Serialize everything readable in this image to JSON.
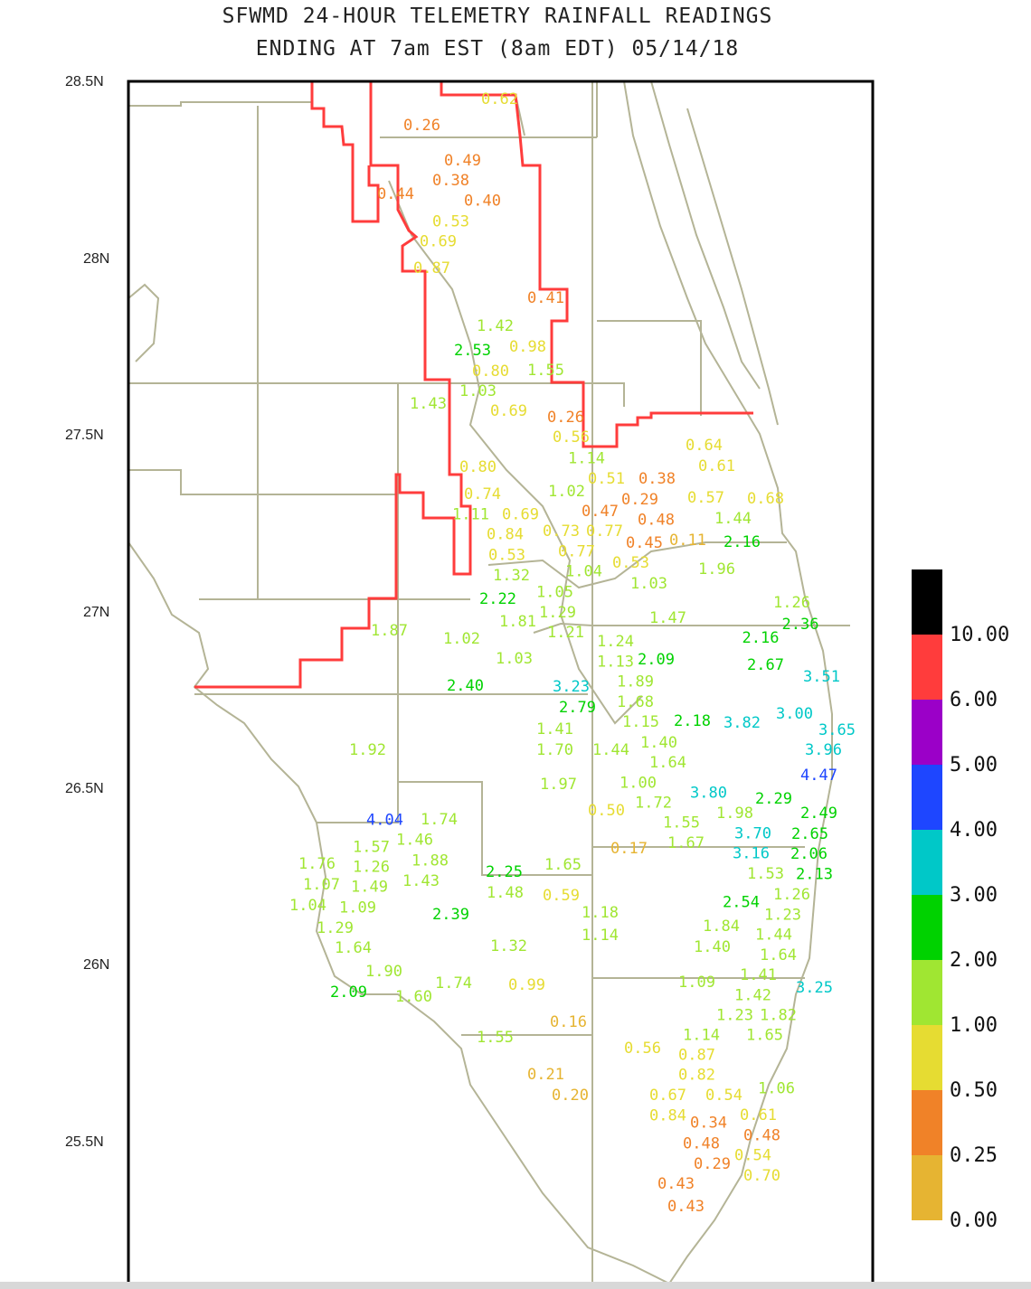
{
  "title_line1": "SFWMD 24-HOUR TELEMETRY RAINFALL READINGS",
  "title_line2": "ENDING AT 7am EST (8am EDT) 05/14/18",
  "lat_ticks": [
    "28.5N",
    "28N",
    "27.5N",
    "27N",
    "26.5N",
    "26N",
    "25.5N"
  ],
  "legend": {
    "labels": [
      "10.00",
      "6.00",
      "5.00",
      "4.00",
      "3.00",
      "2.00",
      "1.00",
      "0.50",
      "0.25",
      "0.00"
    ],
    "colors": [
      "#000000",
      "#ff3c3c",
      "#9b00c8",
      "#1e46ff",
      "#00c8c8",
      "#00d200",
      "#a0e632",
      "#e6dc32",
      "#f08228",
      "#e6b432"
    ]
  },
  "colors": {
    "district_boundary": "#ff3c3c",
    "county_lines": "#b4b496",
    "frame": "#000000"
  },
  "readings": [
    "0.62",
    "0.26",
    "0.49",
    "0.38",
    "0.44",
    "0.40",
    "0.53",
    "0.69",
    "0.87",
    "0.41",
    "1.42",
    "2.53",
    "0.98",
    "0.80",
    "1.55",
    "1.03",
    "1.43",
    "0.69",
    "0.26",
    "0.56",
    "0.64",
    "0.61",
    "0.80",
    "1.14",
    "0.51",
    "0.38",
    "0.74",
    "1.02",
    "0.29",
    "0.57",
    "0.68",
    "1.11",
    "0.69",
    "0.47",
    "0.48",
    "1.44",
    "0.84",
    "0.73",
    "0.77",
    "0.11",
    "2.16",
    "0.53",
    "0.45",
    "0.77",
    "0.53",
    "1.32",
    "1.04",
    "1.96",
    "1.05",
    "1.03",
    "2.22",
    "1.29",
    "1.26",
    "1.81",
    "1.21",
    "1.47",
    "2.36",
    "2.16",
    "1.87",
    "1.02",
    "1.24",
    "2.09",
    "1.03",
    "2.67",
    "3.51",
    "2.40",
    "1.13",
    "3.23",
    "1.89",
    "2.79",
    "1.68",
    "1.15",
    "2.18",
    "3.82",
    "3.00",
    "3.65",
    "1.41",
    "1.92",
    "1.70",
    "1.44",
    "1.40",
    "3.96",
    "1.64",
    "1.00",
    "4.47",
    "1.97",
    "1.72",
    "3.80",
    "2.29",
    "0.50",
    "1.55",
    "1.98",
    "2.49",
    "4.04",
    "1.74",
    "1.46",
    "1.57",
    "1.67",
    "3.70",
    "2.65",
    "0.17",
    "1.76",
    "1.26",
    "1.88",
    "1.43",
    "2.25",
    "1.65",
    "3.16",
    "2.06",
    "1.07",
    "1.49",
    "1.48",
    "0.59",
    "1.53",
    "2.13",
    "2.54",
    "1.26",
    "1.04",
    "1.09",
    "2.39",
    "1.18",
    "1.23",
    "1.29",
    "1.14",
    "1.84",
    "1.44",
    "1.40",
    "1.32",
    "1.64",
    "1.64",
    "1.90",
    "1.41",
    "1.09",
    "1.74",
    "0.99",
    "3.25",
    "2.09",
    "1.60",
    "1.42",
    "1.23",
    "1.82",
    "0.16",
    "1.14",
    "1.65",
    "1.55",
    "0.56",
    "0.87",
    "0.82",
    "0.21",
    "0.20",
    "0.67",
    "0.54",
    "1.06",
    "0.84",
    "0.61",
    "0.34",
    "0.48",
    "0.48",
    "0.54",
    "0.29",
    "0.70",
    "0.43",
    "0.43"
  ]
}
